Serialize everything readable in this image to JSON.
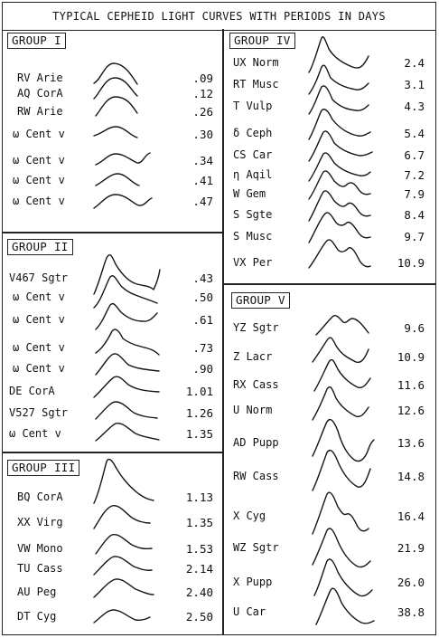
{
  "title": "TYPICAL CEPHEID LIGHT CURVES WITH PERIODS IN DAYS",
  "groups": {
    "g1": {
      "label": "GROUP I",
      "stars": [
        {
          "name": "RV Arie",
          "period": ".09"
        },
        {
          "name": "AQ CorA",
          "period": ".12"
        },
        {
          "name": "RW Arie",
          "period": ".26"
        },
        {
          "name": "ω Cent v",
          "period": ".30"
        },
        {
          "name": "ω Cent v",
          "period": ".34"
        },
        {
          "name": "ω Cent v",
          "period": ".41"
        },
        {
          "name": "ω Cent v",
          "period": ".47"
        }
      ]
    },
    "g2": {
      "label": "GROUP II",
      "stars": [
        {
          "name": "V467 Sgtr",
          "period": ".43"
        },
        {
          "name": "ω Cent v",
          "period": ".50"
        },
        {
          "name": "ω Cent v",
          "period": ".61"
        },
        {
          "name": "ω Cent v",
          "period": ".73"
        },
        {
          "name": "ω Cent v",
          "period": ".90"
        },
        {
          "name": "DE CorA",
          "period": "1.01"
        },
        {
          "name": "V527 Sgtr",
          "period": "1.26"
        },
        {
          "name": "ω Cent v",
          "period": "1.35"
        }
      ]
    },
    "g3": {
      "label": "GROUP III",
      "stars": [
        {
          "name": "BQ CorA",
          "period": "1.13"
        },
        {
          "name": "XX Virg",
          "period": "1.35"
        },
        {
          "name": "VW Mono",
          "period": "1.53"
        },
        {
          "name": "TU Cass",
          "period": "2.14"
        },
        {
          "name": "AU Peg",
          "period": "2.40"
        },
        {
          "name": "DT Cyg",
          "period": "2.50"
        }
      ]
    },
    "g4": {
      "label": "GROUP IV",
      "stars": [
        {
          "name": "UX Norm",
          "period": "2.4"
        },
        {
          "name": "RT Musc",
          "period": "3.1"
        },
        {
          "name": "T Vulp",
          "period": "4.3"
        },
        {
          "name": "δ Ceph",
          "period": "5.4"
        },
        {
          "name": "CS Car",
          "period": "6.7"
        },
        {
          "name": "η Aqil",
          "period": "7.2"
        },
        {
          "name": "W Gem",
          "period": "7.9"
        },
        {
          "name": "S Sgte",
          "period": "8.4"
        },
        {
          "name": "S Musc",
          "period": "9.7"
        },
        {
          "name": "VX Per",
          "period": "10.9"
        }
      ]
    },
    "g5": {
      "label": "GROUP V",
      "stars": [
        {
          "name": "YZ Sgtr",
          "period": "9.6"
        },
        {
          "name": "Z Lacr",
          "period": "10.9"
        },
        {
          "name": "RX Cass",
          "period": "11.6"
        },
        {
          "name": "U Norm",
          "period": "12.6"
        },
        {
          "name": "AD Pupp",
          "period": "13.6"
        },
        {
          "name": "RW Cass",
          "period": "14.8"
        },
        {
          "name": "X Cyg",
          "period": "16.4"
        },
        {
          "name": "WZ Sgtr",
          "period": "21.9"
        },
        {
          "name": "X Pupp",
          "period": "26.0"
        },
        {
          "name": "U Car",
          "period": "38.8"
        }
      ]
    }
  }
}
